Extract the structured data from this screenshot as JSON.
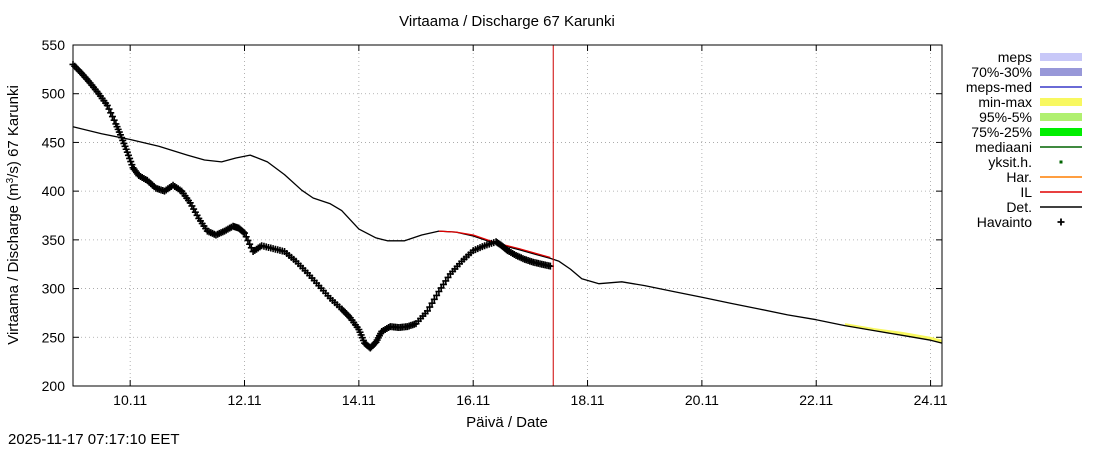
{
  "chart_data": {
    "type": "line",
    "title": "Virtaama / Discharge  67 Karunki",
    "xlabel": "Päivä / Date",
    "ylabel": "Virtaama / Discharge (m",
    "ylabel_sup": "3",
    "ylabel_tail": "/s)  67 Karunki",
    "ylim": [
      200,
      550
    ],
    "xlim_days": [
      0,
      15.2
    ],
    "y_ticks": [
      200,
      250,
      300,
      350,
      400,
      450,
      500,
      550
    ],
    "x_ticks": [
      {
        "day": 1.0,
        "label": "10.11"
      },
      {
        "day": 3.0,
        "label": "12.11"
      },
      {
        "day": 5.0,
        "label": "14.11"
      },
      {
        "day": 7.0,
        "label": "16.11"
      },
      {
        "day": 9.0,
        "label": "18.11"
      },
      {
        "day": 11.0,
        "label": "20.11"
      },
      {
        "day": 13.0,
        "label": "22.11"
      },
      {
        "day": 15.0,
        "label": "24.11"
      }
    ],
    "now_day": 8.4,
    "legend": [
      {
        "label": "meps",
        "style": "band",
        "color": "#c8c8f8"
      },
      {
        "label": "70%-30%",
        "style": "band",
        "color": "#9898d8"
      },
      {
        "label": "meps-med",
        "style": "line",
        "color": "#3838c8"
      },
      {
        "label": "min-max",
        "style": "band",
        "color": "#f8f860"
      },
      {
        "label": "95%-5%",
        "style": "band",
        "color": "#b0f070"
      },
      {
        "label": "75%-25%",
        "style": "band",
        "color": "#00ee00"
      },
      {
        "label": "mediaani",
        "style": "line",
        "color": "#006400"
      },
      {
        "label": "yksit.h.",
        "style": "dot",
        "color": "#006400"
      },
      {
        "label": "Har.",
        "style": "line",
        "color": "#ff7f00"
      },
      {
        "label": "IL",
        "style": "line",
        "color": "#e00000"
      },
      {
        "label": "Det.",
        "style": "line",
        "color": "#000000"
      },
      {
        "label": "Havainto",
        "style": "plus",
        "color": "#000000"
      }
    ],
    "series": [
      {
        "name": "Det.",
        "color": "#000000",
        "x": [
          0,
          0.5,
          1.0,
          1.5,
          2.0,
          2.3,
          2.6,
          2.85,
          3.1,
          3.4,
          3.7,
          4.0,
          4.2,
          4.35,
          4.5,
          4.7,
          5.0,
          5.3,
          5.5,
          5.8,
          6.1,
          6.4,
          6.7,
          7.0,
          7.4,
          7.8,
          8.1,
          8.35,
          8.5,
          8.7,
          8.9,
          9.2,
          9.6,
          10.0,
          10.5,
          11.0,
          11.5,
          12.0,
          12.5,
          13.0,
          13.5,
          14.0,
          14.5,
          15.0,
          15.2
        ],
        "y": [
          466,
          459,
          453,
          446,
          437,
          432,
          430,
          434,
          437,
          430,
          417,
          401,
          393,
          390,
          387,
          380,
          361,
          352,
          349,
          349,
          355,
          359,
          358,
          354,
          346,
          340,
          335,
          331,
          328,
          320,
          310,
          305,
          307,
          303,
          297,
          291,
          285,
          279,
          273,
          268,
          262,
          257,
          252,
          247,
          244
        ]
      },
      {
        "name": "IL",
        "color": "#e00000",
        "x": [
          6.4,
          6.7,
          7.0,
          7.4,
          7.8,
          8.1,
          8.35
        ],
        "y": [
          359,
          358,
          355,
          347,
          341,
          336,
          332
        ]
      },
      {
        "name": "min-max",
        "color": "#f8f860",
        "x": [
          13.5,
          14.0,
          14.5,
          15.0,
          15.2
        ],
        "y": [
          263,
          258,
          254,
          249,
          246
        ]
      },
      {
        "name": "Havainto",
        "color": "#000000",
        "x": [
          0,
          0.15,
          0.3,
          0.45,
          0.6,
          0.75,
          0.85,
          0.95,
          1.05,
          1.15,
          1.3,
          1.45,
          1.6,
          1.75,
          1.9,
          2.05,
          2.2,
          2.35,
          2.5,
          2.65,
          2.8,
          2.9,
          3.0,
          3.15,
          3.3,
          3.5,
          3.7,
          3.9,
          4.1,
          4.3,
          4.5,
          4.7,
          4.85,
          5.0,
          5.1,
          5.2,
          5.3,
          5.4,
          5.55,
          5.7,
          5.85,
          6.0,
          6.2,
          6.4,
          6.6,
          6.8,
          7.0,
          7.2,
          7.4,
          7.5,
          7.6,
          7.75,
          7.9,
          8.05,
          8.2,
          8.35
        ],
        "y": [
          530,
          521,
          511,
          500,
          488,
          469,
          455,
          440,
          424,
          416,
          411,
          403,
          400,
          406,
          400,
          388,
          372,
          359,
          355,
          359,
          364,
          362,
          357,
          338,
          344,
          341,
          338,
          328,
          316,
          303,
          290,
          279,
          270,
          258,
          244,
          239,
          245,
          256,
          261,
          260,
          261,
          264,
          277,
          297,
          315,
          328,
          339,
          344,
          348,
          344,
          339,
          334,
          330,
          327,
          325,
          323
        ]
      }
    ]
  },
  "timestamp": "2025-11-17 07:17:10 EET"
}
